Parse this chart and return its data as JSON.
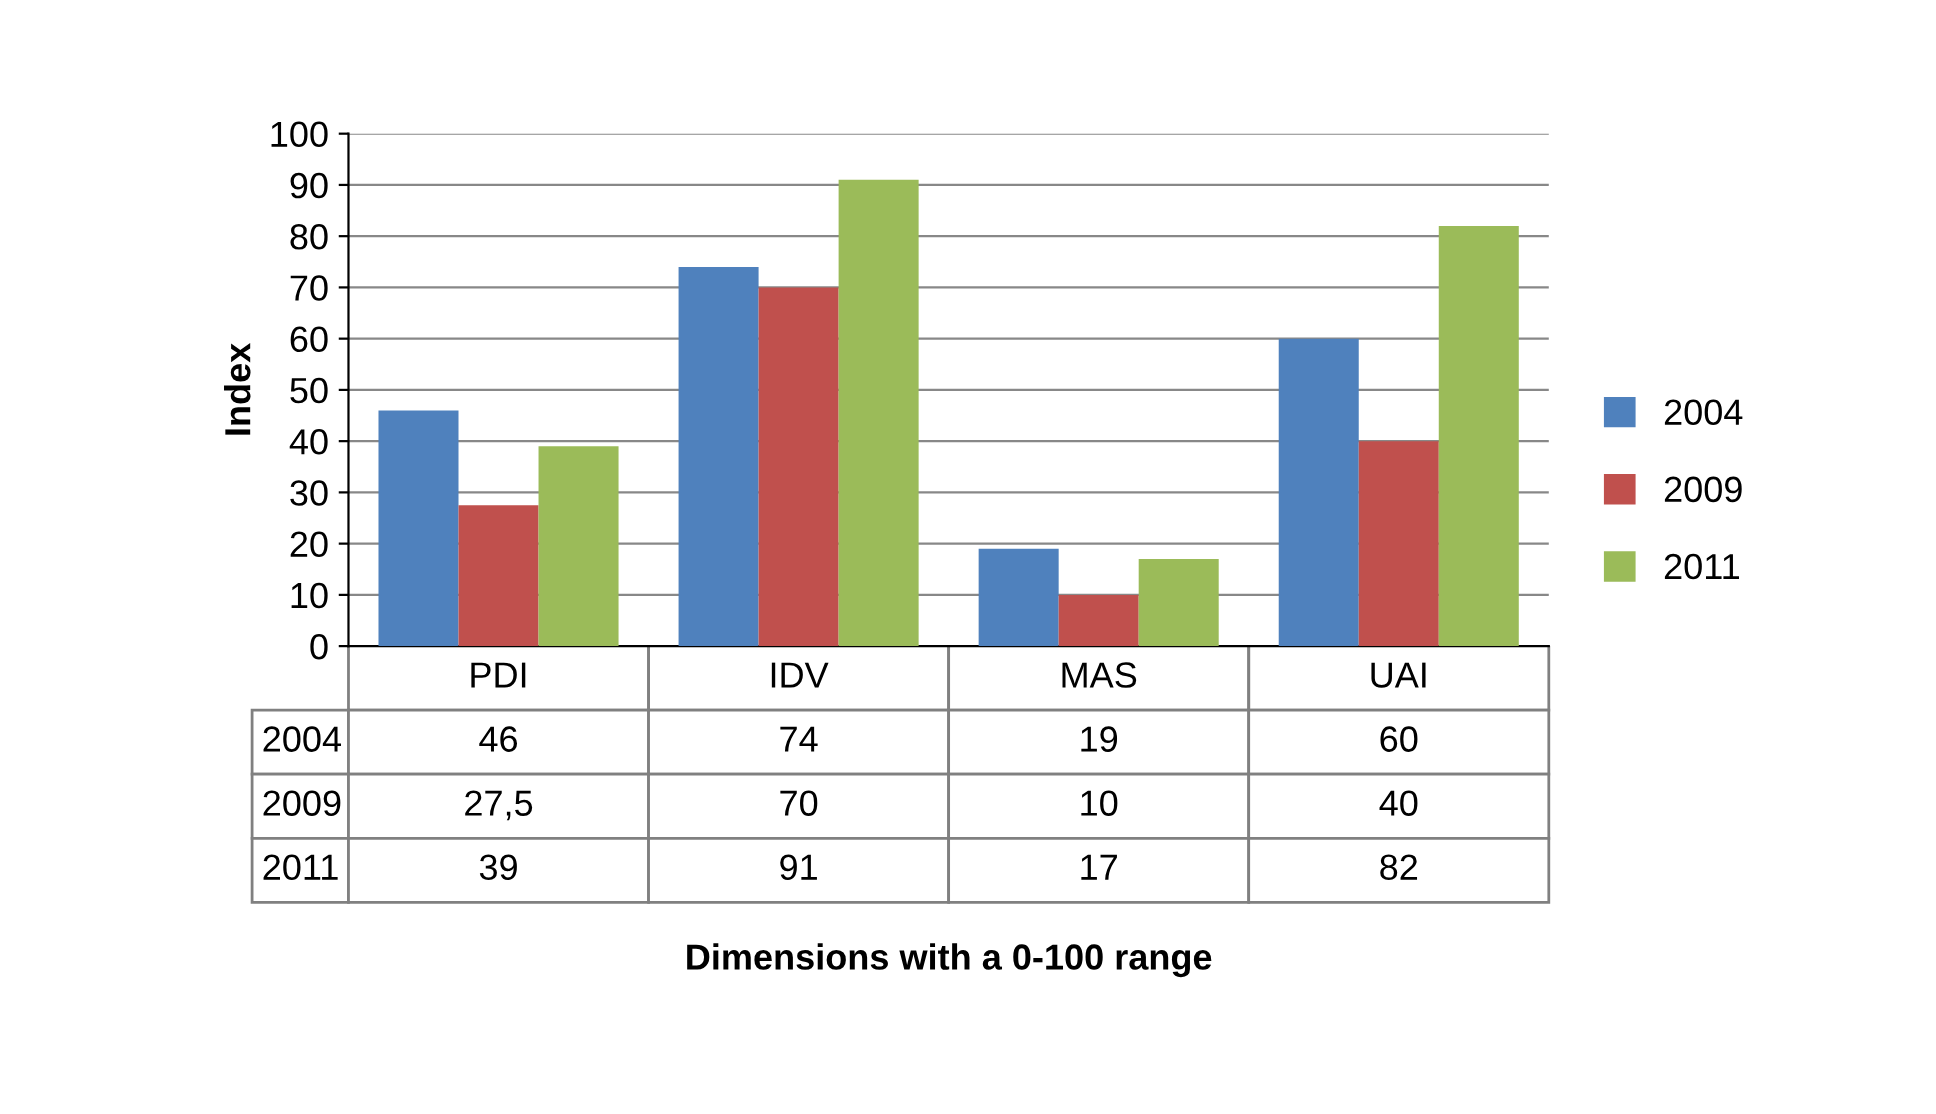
{
  "chart_data": {
    "type": "bar",
    "ylabel": "Index",
    "annotations": [
      "Dimensions with a 0-100 range"
    ],
    "categories": [
      "PDI",
      "IDV",
      "MAS",
      "UAI"
    ],
    "series": [
      {
        "name": "2004",
        "color": "#4f81bd",
        "values": [
          46,
          74,
          19,
          60
        ],
        "value_labels": [
          "46",
          "74",
          "19",
          "60"
        ]
      },
      {
        "name": "2009",
        "color": "#c0504d",
        "values": [
          27.5,
          70,
          10,
          40
        ],
        "value_labels": [
          "27,5",
          "70",
          "10",
          "40"
        ]
      },
      {
        "name": "2011",
        "color": "#9bbb59",
        "values": [
          39,
          91,
          17,
          82
        ],
        "value_labels": [
          "39",
          "91",
          "17",
          "82"
        ]
      }
    ],
    "ylim": [
      0,
      100
    ],
    "yticks": [
      0,
      10,
      20,
      30,
      40,
      50,
      60,
      70,
      80,
      90,
      100
    ],
    "grid": "y",
    "legend": "right"
  }
}
